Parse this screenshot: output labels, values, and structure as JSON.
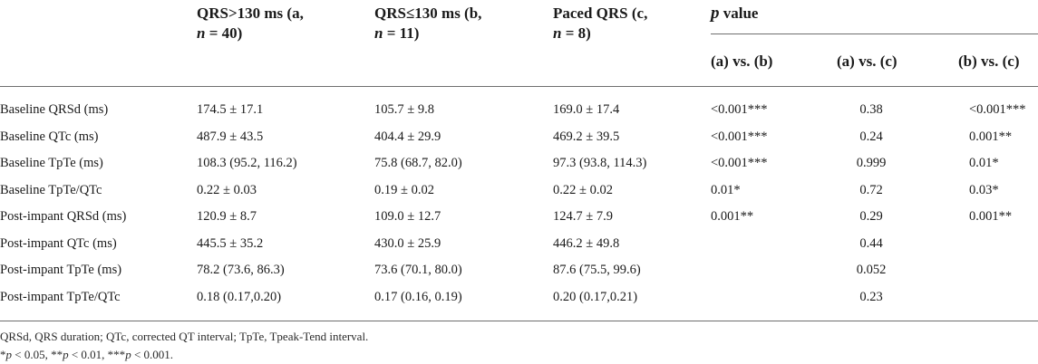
{
  "table": {
    "headers": {
      "col_a": {
        "line1": "QRS>130 ms (a,",
        "line2_italic": "n",
        "line2_rest": " = 40)"
      },
      "col_b": {
        "line1": "QRS≤130 ms (b,",
        "line2_italic": "n",
        "line2_rest": " = 11)"
      },
      "col_c": {
        "line1": "Paced QRS (c,",
        "line2_italic": "n",
        "line2_rest": " = 8)"
      },
      "pvalue": {
        "italic": "p",
        "rest": " value"
      },
      "sub": [
        "(a) vs. (b)",
        "(a) vs. (c)",
        "(b) vs. (c)"
      ]
    },
    "rows": [
      {
        "label": "Baseline QRSd (ms)",
        "a": "174.5 ± 17.1",
        "b": "105.7 ± 9.8",
        "c": "169.0 ± 17.4",
        "ab": "<0.001***",
        "ac": "0.38",
        "bc": "<0.001***"
      },
      {
        "label": "Baseline QTc (ms)",
        "a": "487.9 ± 43.5",
        "b": "404.4 ± 29.9",
        "c": "469.2 ± 39.5",
        "ab": "<0.001***",
        "ac": "0.24",
        "bc": "0.001**"
      },
      {
        "label": "Baseline TpTe (ms)",
        "a": "108.3 (95.2, 116.2)",
        "b": "75.8 (68.7, 82.0)",
        "c": "97.3 (93.8, 114.3)",
        "ab": "<0.001***",
        "ac": "0.999",
        "bc": "0.01*"
      },
      {
        "label": "Baseline TpTe/QTc",
        "a": "0.22 ± 0.03",
        "b": "0.19 ± 0.02",
        "c": "0.22 ± 0.02",
        "ab": "0.01*",
        "ac": "0.72",
        "bc": "0.03*"
      },
      {
        "label": "Post-impant QRSd (ms)",
        "a": "120.9 ± 8.7",
        "b": "109.0 ± 12.7",
        "c": "124.7 ± 7.9",
        "ab": "0.001**",
        "ac": "0.29",
        "bc": "0.001**"
      },
      {
        "label": "Post-impant QTc (ms)",
        "a": "445.5 ± 35.2",
        "b": "430.0 ± 25.9",
        "c": "446.2 ± 49.8",
        "ab": "",
        "ac": "0.44",
        "bc": ""
      },
      {
        "label": "Post-impant TpTe (ms)",
        "a": "78.2 (73.6, 86.3)",
        "b": "73.6 (70.1, 80.0)",
        "c": "87.6 (75.5, 99.6)",
        "ab": "",
        "ac": "0.052",
        "bc": ""
      },
      {
        "label": "Post-impant TpTe/QTc",
        "a": "0.18 (0.17,0.20)",
        "b": "0.17 (0.16, 0.19)",
        "c": "0.20 (0.17,0.21)",
        "ab": "",
        "ac": "0.23",
        "bc": ""
      }
    ]
  },
  "footnotes": {
    "abbrev": "QRSd, QRS duration; QTc, corrected QT interval; TpTe, Tpeak-Tend interval.",
    "sig": {
      "p1": "p",
      "t1": " < 0.05, **",
      "p2": "p",
      "t2": " < 0.01, ***",
      "p3": "p",
      "t3": " < 0.001.",
      "lead": "*"
    }
  }
}
